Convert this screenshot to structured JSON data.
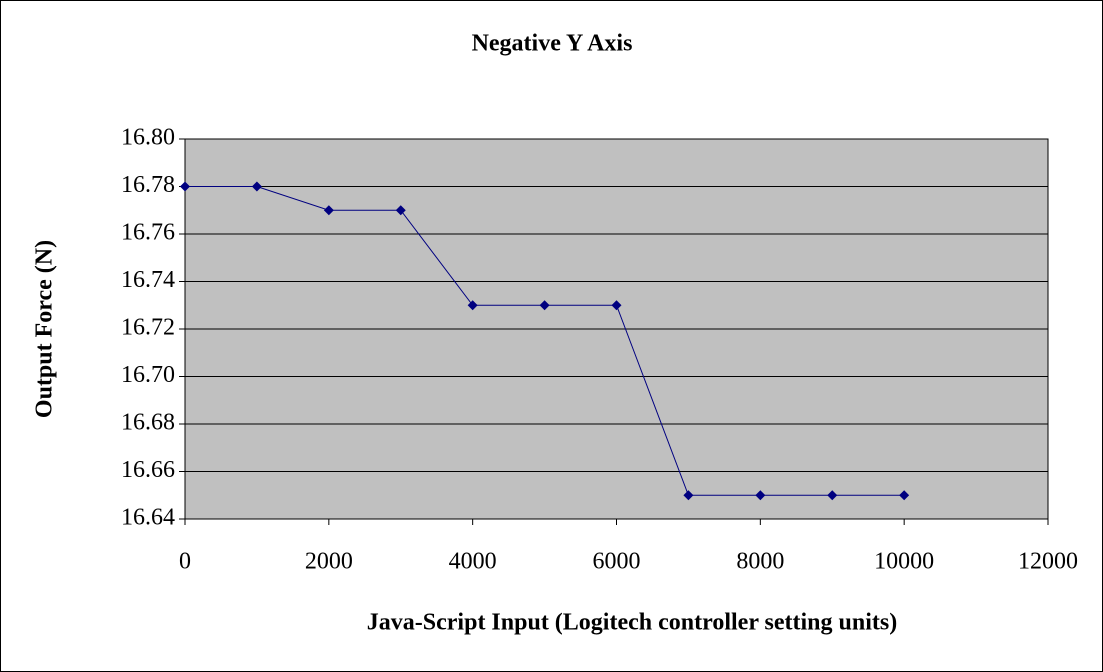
{
  "chart_data": {
    "type": "line",
    "title": "Negative Y Axis",
    "x_label": "Java-Script Input (Logitech controller setting units)",
    "y_label": "Output Force (N)",
    "x": [
      0,
      1000,
      2000,
      3000,
      4000,
      5000,
      6000,
      7000,
      8000,
      9000,
      10000
    ],
    "series": [
      {
        "color": "#000080",
        "values": [
          16.78,
          16.78,
          16.77,
          16.77,
          16.73,
          16.73,
          16.73,
          16.65,
          16.65,
          16.65,
          16.65
        ]
      }
    ],
    "xlim": [
      0,
      12000
    ],
    "xticks": [
      0,
      2000,
      4000,
      6000,
      8000,
      10000,
      12000
    ],
    "ylim": [
      16.64,
      16.8
    ],
    "yticks": [
      16.64,
      16.66,
      16.68,
      {
        "value": 16.7,
        "label": "16.70"
      },
      16.72,
      16.74,
      16.76,
      16.78,
      {
        "value": 16.8,
        "label": "16.80"
      }
    ],
    "grid": true,
    "plot_background": "#c0c0c0"
  }
}
